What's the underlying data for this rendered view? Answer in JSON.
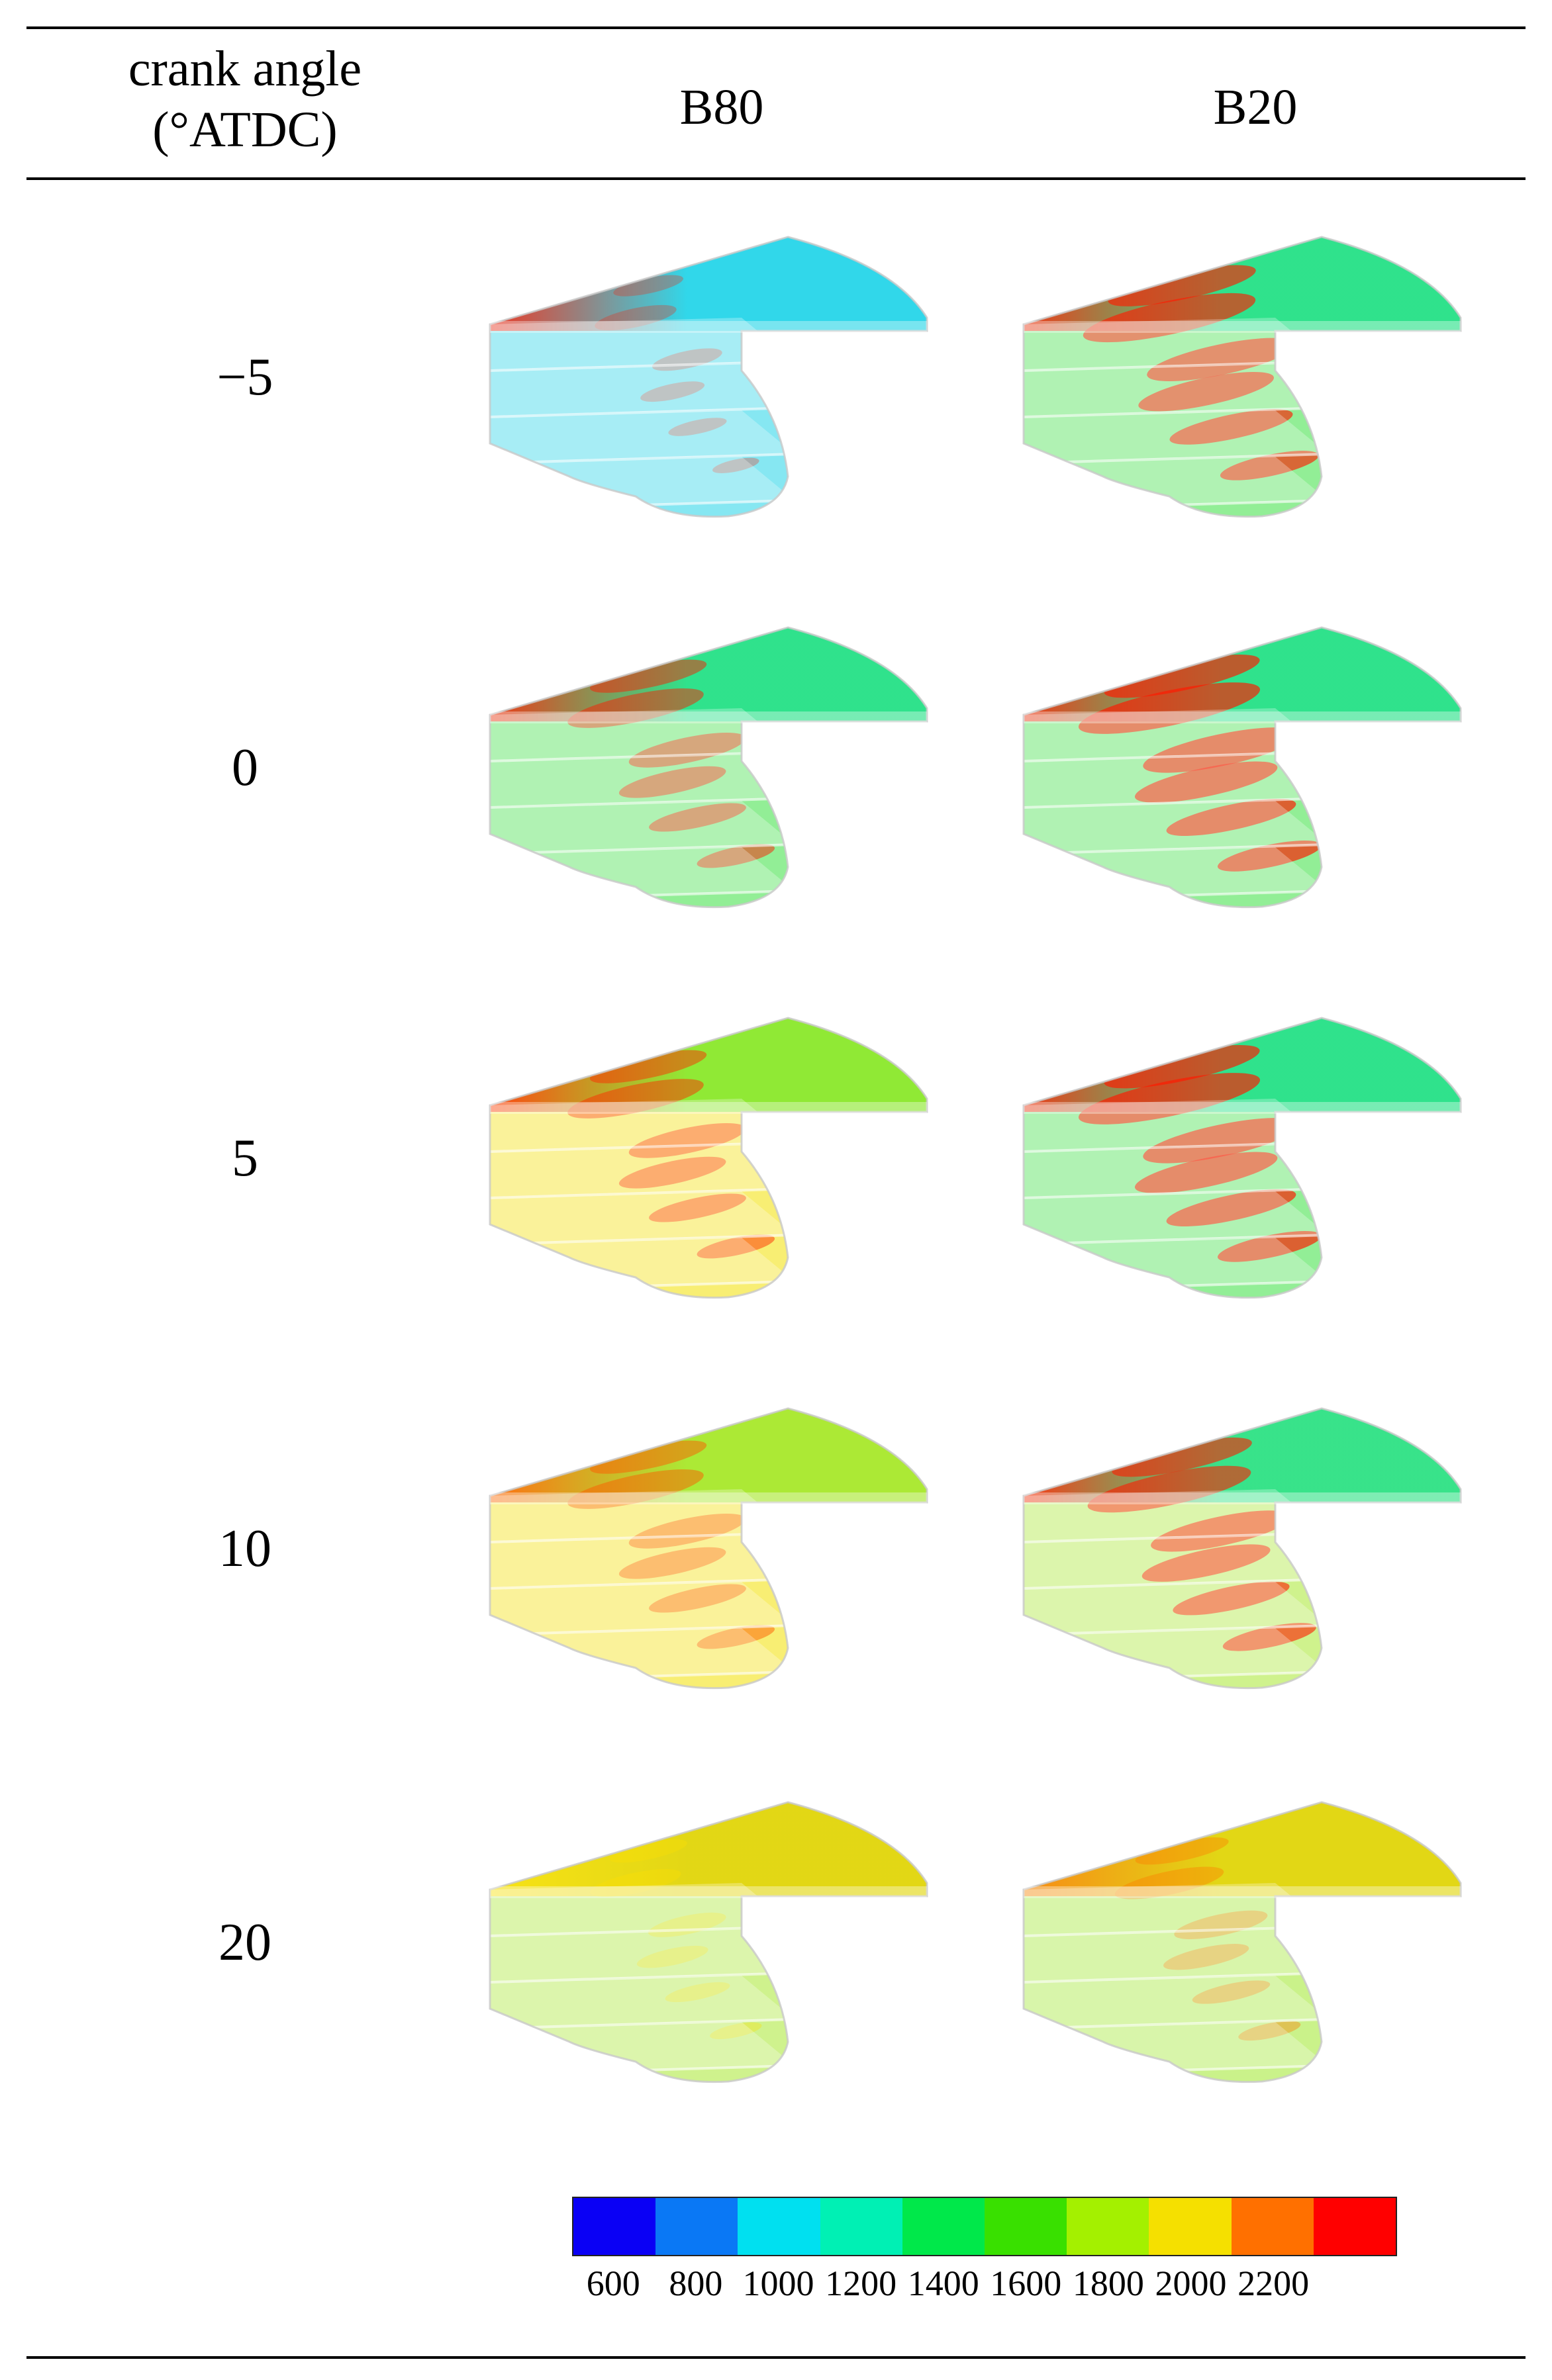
{
  "table": {
    "header": {
      "col_angle_line1": "crank angle",
      "col_angle_line2": "(°ATDC)",
      "col_b80": "B80",
      "col_b20": "B20"
    },
    "rows": [
      {
        "angle": "−5",
        "b80": {
          "top": "#22d4e8",
          "bottom": "#22d4e8",
          "hot": "#ff1a00",
          "level": 0.05
        },
        "b20": {
          "top": "#1ee08a",
          "bottom": "#39e040",
          "hot": "#ff1a00",
          "level": 0.55
        }
      },
      {
        "angle": "0",
        "b80": {
          "top": "#1ee08a",
          "bottom": "#39e040",
          "hot": "#ff1a00",
          "level": 0.35
        },
        "b20": {
          "top": "#1ee08a",
          "bottom": "#39e040",
          "hot": "#ff1a00",
          "level": 0.6
        }
      },
      {
        "angle": "5",
        "b80": {
          "top": "#7ee82a",
          "bottom": "#f2e000",
          "hot": "#ff2a00",
          "level": 0.35
        },
        "b20": {
          "top": "#1ee08a",
          "bottom": "#39e040",
          "hot": "#ff1a00",
          "level": 0.6
        }
      },
      {
        "angle": "10",
        "b80": {
          "top": "#9ee82a",
          "bottom": "#f2e000",
          "hot": "#ff5a00",
          "level": 0.35
        },
        "b20": {
          "top": "#1ee08a",
          "bottom": "#a8e830",
          "hot": "#ff1a00",
          "level": 0.5
        }
      },
      {
        "angle": "20",
        "b80": {
          "top": "#e6d200",
          "bottom": "#a8e830",
          "hot": "#ffe000",
          "level": 0.1
        },
        "b20": {
          "top": "#e6d200",
          "bottom": "#9ee82a",
          "hot": "#ff7a00",
          "level": 0.2
        }
      }
    ]
  },
  "colorbar": {
    "colors": [
      "#0a00f5",
      "#0a78f5",
      "#00e0f0",
      "#00f0b4",
      "#00e84a",
      "#39e000",
      "#a4f000",
      "#f5e000",
      "#ff7000",
      "#ff0000"
    ],
    "labels": [
      "600",
      "800",
      "1000",
      "1200",
      "1400",
      "1600",
      "1800",
      "2000",
      "2200"
    ]
  }
}
